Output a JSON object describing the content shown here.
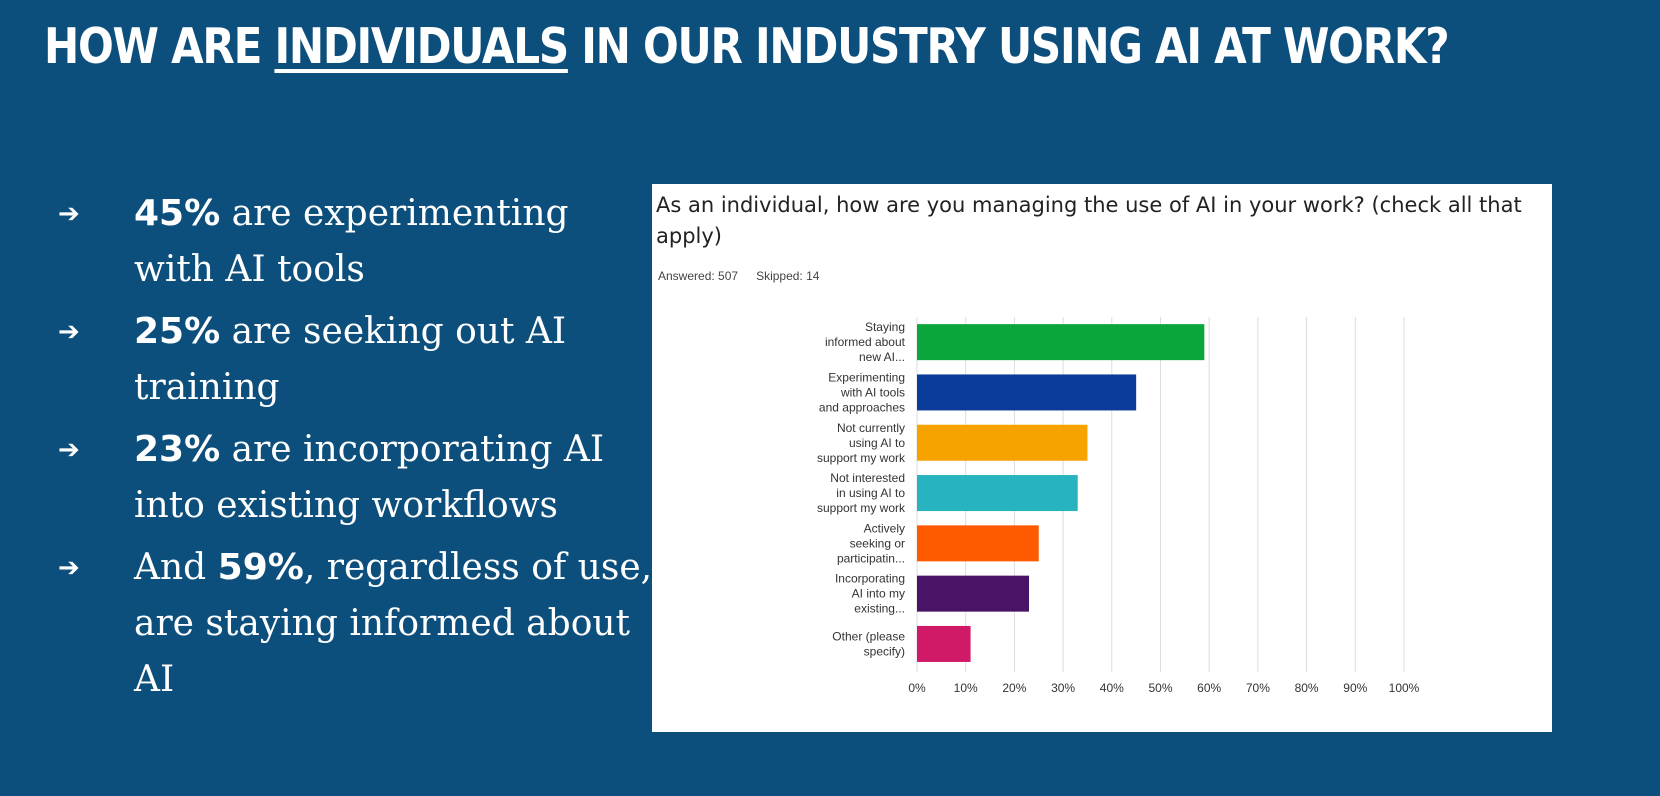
{
  "slide": {
    "title_pre": "HOW ARE ",
    "title_em": "INDIVIDUALS",
    "title_post": " IN OUR INDUSTRY USING AI AT WORK?",
    "arrow_glyph": "➔"
  },
  "bullets": [
    {
      "pre": "",
      "bold": "45%",
      "post": " are experimenting with AI tools"
    },
    {
      "pre": "",
      "bold": "25%",
      "post": " are seeking out AI training"
    },
    {
      "pre": "",
      "bold": "23%",
      "post": " are incorporating AI into existing workflows"
    },
    {
      "pre": "And ",
      "bold": "59%",
      "post": ", regardless of use, are staying informed about AI"
    }
  ],
  "survey": {
    "question": "As an individual, how are you managing the use of AI in your work? (check all that apply)",
    "answered": "Answered: 507",
    "skipped": "Skipped: 14"
  },
  "colors": {
    "background": "#0c4f7c",
    "bars": [
      "#0aa53b",
      "#0b3b9a",
      "#f6a300",
      "#27b3bf",
      "#ff5a00",
      "#4a1466",
      "#d01a67"
    ],
    "grid": "#dddddd"
  },
  "chart_data": {
    "type": "bar",
    "orientation": "horizontal",
    "categories": [
      [
        "Staying",
        "informed about",
        "new AI..."
      ],
      [
        "Experimenting",
        "with AI tools",
        "and approaches"
      ],
      [
        "Not currently",
        "using AI to",
        "support my work"
      ],
      [
        "Not interested",
        "in using AI to",
        "support my work"
      ],
      [
        "Actively",
        "seeking or",
        "participatin..."
      ],
      [
        "Incorporating",
        "AI into my",
        "existing..."
      ],
      [
        "Other (please",
        "specify)"
      ]
    ],
    "values": [
      59,
      45,
      35,
      33,
      25,
      23,
      11
    ],
    "xlim": [
      0,
      100
    ],
    "xticks": [
      "0%",
      "10%",
      "20%",
      "30%",
      "40%",
      "50%",
      "60%",
      "70%",
      "80%",
      "90%",
      "100%"
    ],
    "grid": true,
    "title": "As an individual, how are you managing the use of AI in your work? (check all that apply)"
  }
}
